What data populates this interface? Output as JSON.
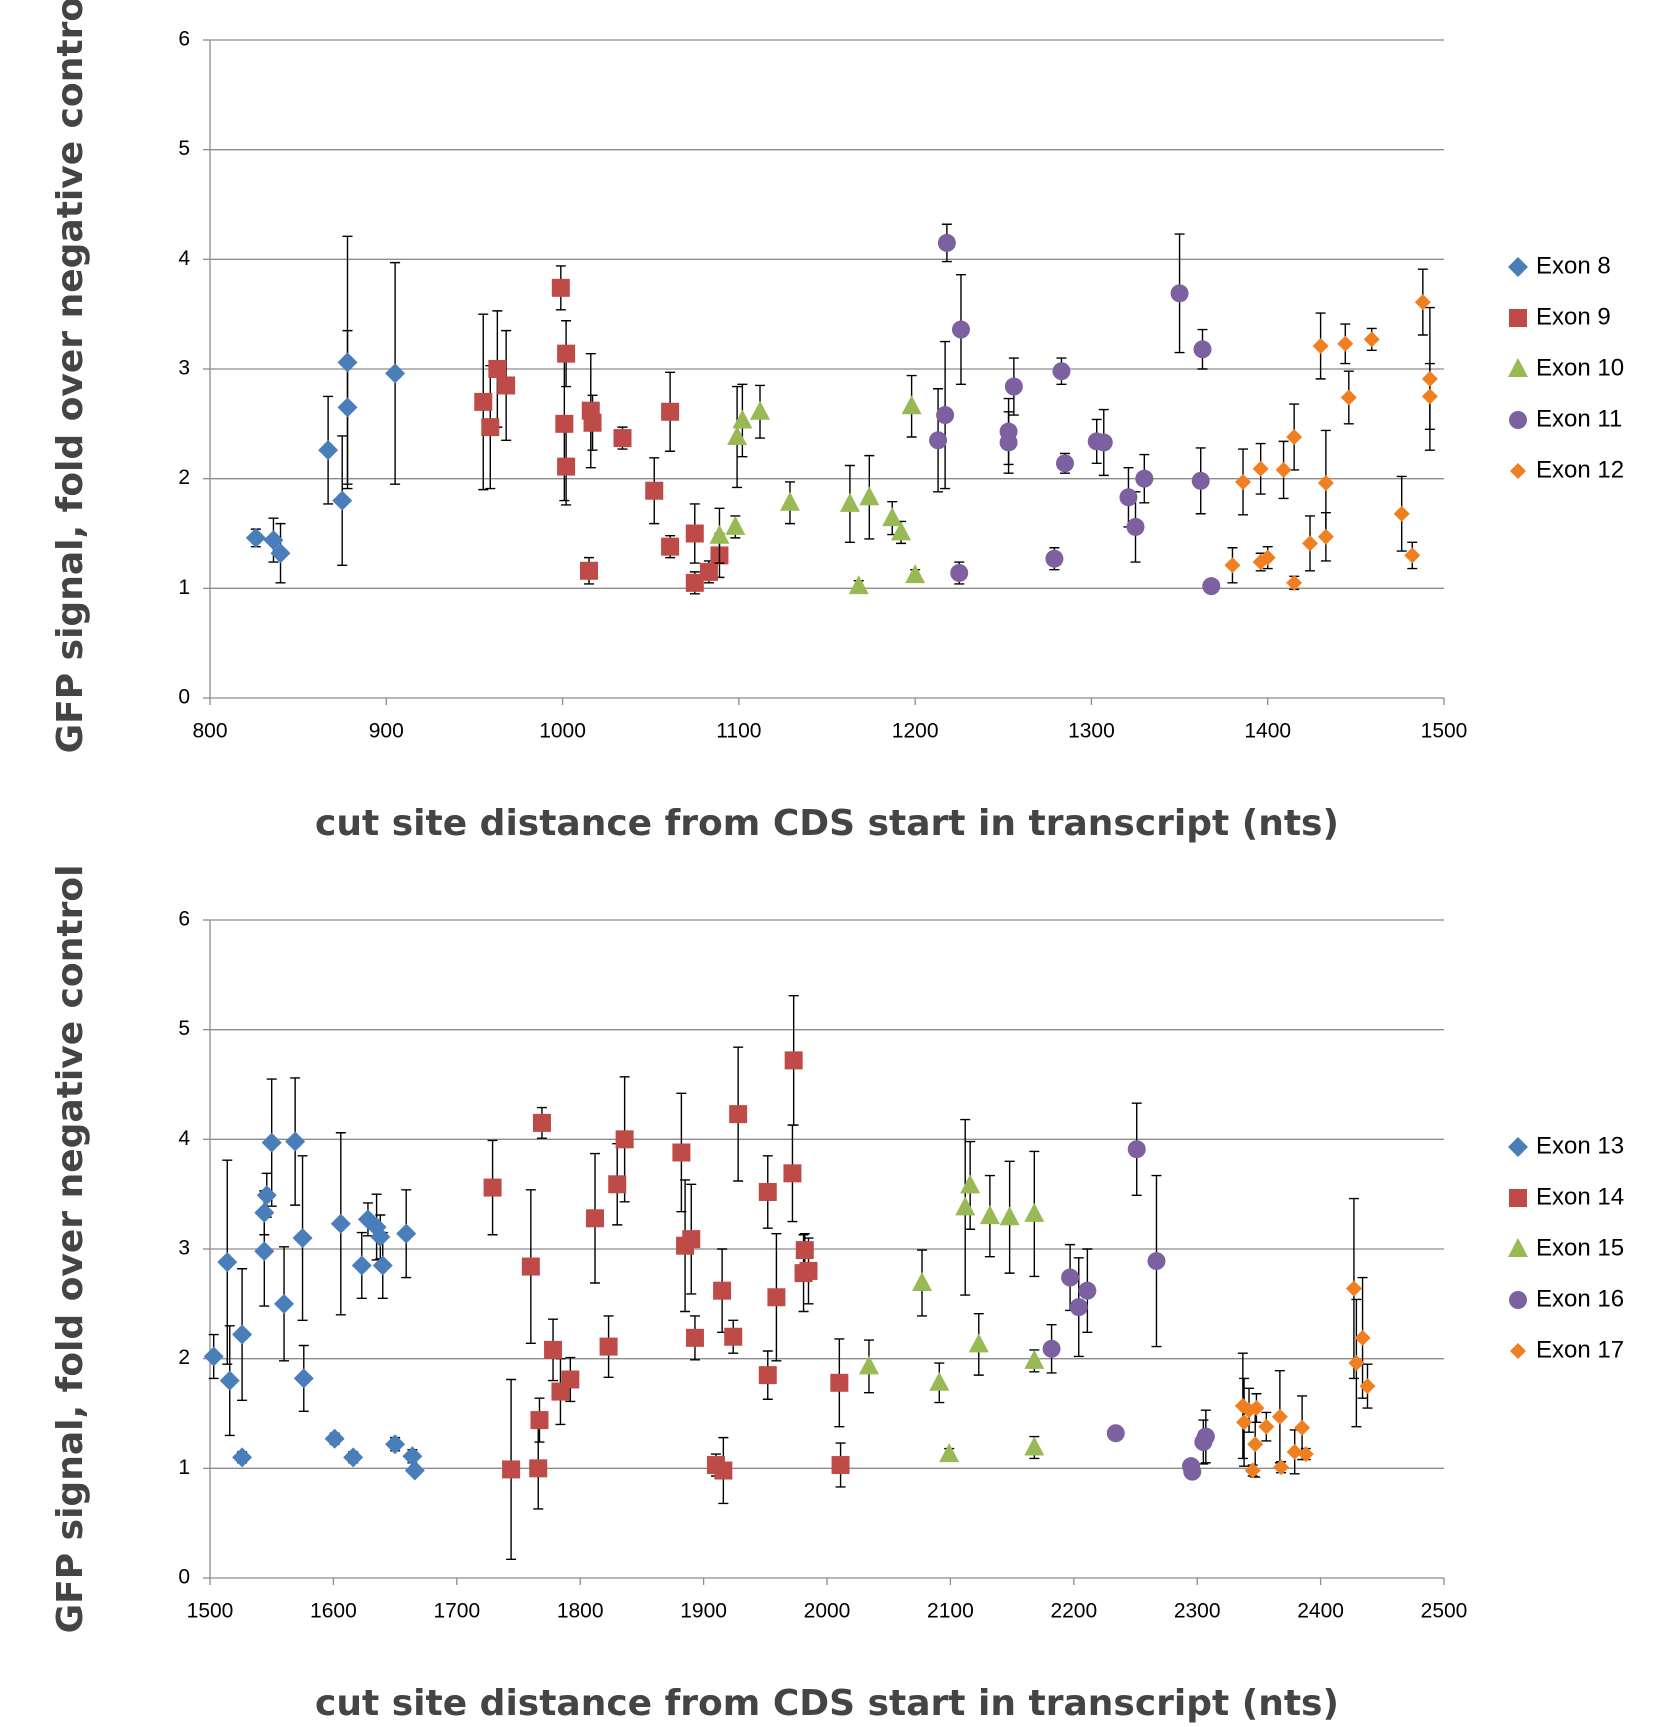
{
  "chart_data": [
    {
      "type": "scatter",
      "y_label": "GFP signal, fold over negative control",
      "x_label": "cut site distance from CDS start in transcript (nts)",
      "xlim": [
        800,
        1500
      ],
      "xticks": [
        800,
        900,
        1000,
        1100,
        1200,
        1300,
        1400,
        1500
      ],
      "ylim": [
        0,
        6
      ],
      "yticks": [
        0,
        1,
        2,
        3,
        4,
        5,
        6
      ],
      "grid": true,
      "legend": "right",
      "series": [
        {
          "name": "Exon 8",
          "color": "#4a7ebb",
          "marker": "diamond",
          "x": [
            826,
            836,
            840,
            867,
            875,
            878,
            878,
            905
          ],
          "values": [
            1.46,
            1.44,
            1.32,
            2.26,
            1.8,
            3.06,
            2.65,
            2.96
          ],
          "errors": [
            0.08,
            0.2,
            0.27,
            0.49,
            0.59,
            1.15,
            0.7,
            1.01
          ]
        },
        {
          "name": "Exon 9",
          "color": "#be4b48",
          "marker": "square",
          "x": [
            955,
            959,
            963,
            968,
            999,
            1002,
            1001,
            1002,
            1016,
            1017,
            1015,
            1034,
            1052,
            1061,
            1061,
            1075,
            1075,
            1083,
            1089
          ],
          "values": [
            2.7,
            2.47,
            3.0,
            2.85,
            3.74,
            3.14,
            2.5,
            2.11,
            2.62,
            2.51,
            1.16,
            2.37,
            1.89,
            2.61,
            1.38,
            1.5,
            1.05,
            1.15,
            1.3
          ],
          "errors": [
            0.8,
            0.56,
            0.53,
            0.5,
            0.2,
            0.3,
            0.7,
            0.35,
            0.52,
            0.25,
            0.12,
            0.1,
            0.3,
            0.36,
            0.1,
            0.27,
            0.1,
            0.1,
            0.2
          ]
        },
        {
          "name": "Exon 10",
          "color": "#98b954",
          "marker": "triangle",
          "x": [
            1089,
            1098,
            1099,
            1102,
            1112,
            1129,
            1163,
            1168,
            1174,
            1187,
            1192,
            1198,
            1200
          ],
          "values": [
            1.48,
            1.56,
            2.38,
            2.53,
            2.61,
            1.78,
            1.77,
            1.02,
            1.83,
            1.64,
            1.51,
            2.66,
            1.12
          ],
          "errors": [
            0.25,
            0.1,
            0.46,
            0.33,
            0.24,
            0.19,
            0.35,
            0.05,
            0.38,
            0.15,
            0.1,
            0.28,
            0.05
          ]
        },
        {
          "name": "Exon 11",
          "color": "#7d60a0",
          "marker": "circle",
          "x": [
            1213,
            1217,
            1218,
            1226,
            1225,
            1256,
            1253,
            1253,
            1279,
            1283,
            1285,
            1303,
            1307,
            1321,
            1325,
            1330,
            1350,
            1363,
            1362,
            1368
          ],
          "values": [
            2.35,
            2.58,
            4.15,
            3.36,
            1.14,
            2.84,
            2.43,
            2.33,
            1.27,
            2.98,
            2.14,
            2.34,
            2.33,
            1.83,
            1.56,
            2.0,
            3.69,
            3.18,
            1.98,
            1.02
          ],
          "errors": [
            0.47,
            0.67,
            0.17,
            0.5,
            0.1,
            0.26,
            0.3,
            0.28,
            0.1,
            0.12,
            0.09,
            0.2,
            0.3,
            0.27,
            0.32,
            0.22,
            0.54,
            0.18,
            0.3,
            0.04
          ]
        },
        {
          "name": "Exon 12",
          "color": "#f07f22",
          "marker": "small-diamond",
          "x": [
            1380,
            1386,
            1396,
            1396,
            1400,
            1409,
            1415,
            1415,
            1424,
            1430,
            1433,
            1433,
            1444,
            1446,
            1459,
            1476,
            1482,
            1488,
            1492,
            1492
          ],
          "values": [
            1.21,
            1.97,
            2.09,
            1.24,
            1.28,
            2.08,
            2.38,
            1.05,
            1.41,
            3.21,
            1.96,
            1.47,
            3.23,
            2.74,
            3.27,
            1.68,
            1.3,
            3.61,
            2.91,
            2.75
          ],
          "errors": [
            0.16,
            0.3,
            0.23,
            0.08,
            0.1,
            0.26,
            0.3,
            0.06,
            0.25,
            0.3,
            0.48,
            0.22,
            0.18,
            0.24,
            0.1,
            0.34,
            0.12,
            0.3,
            0.65,
            0.3
          ]
        }
      ]
    },
    {
      "type": "scatter",
      "y_label": "GFP signal, fold over negative control",
      "x_label": "cut site distance from CDS start in transcript (nts)",
      "xlim": [
        1500,
        2500
      ],
      "xticks": [
        1500,
        1600,
        1700,
        1800,
        1900,
        2000,
        2100,
        2200,
        2300,
        2400,
        2500
      ],
      "ylim": [
        0,
        6
      ],
      "yticks": [
        0,
        1,
        2,
        3,
        4,
        5,
        6
      ],
      "grid": true,
      "legend": "right",
      "series": [
        {
          "name": "Exon 13",
          "color": "#4a7ebb",
          "marker": "diamond",
          "x": [
            1503,
            1514,
            1516,
            1526,
            1526,
            1544,
            1546,
            1544,
            1550,
            1560,
            1569,
            1575,
            1576,
            1601,
            1606,
            1616,
            1623,
            1628,
            1635,
            1638,
            1640,
            1650,
            1659,
            1664,
            1666
          ],
          "values": [
            2.02,
            2.88,
            1.8,
            2.22,
            1.1,
            3.33,
            3.49,
            2.98,
            3.97,
            2.5,
            3.98,
            3.1,
            1.82,
            1.27,
            3.23,
            1.1,
            2.85,
            3.27,
            3.2,
            3.11,
            2.85,
            1.22,
            3.14,
            1.11,
            0.98
          ],
          "errors": [
            0.2,
            0.93,
            0.5,
            0.6,
            0.05,
            0.2,
            0.2,
            0.5,
            0.58,
            0.52,
            0.58,
            0.75,
            0.3,
            0.05,
            0.83,
            0.05,
            0.3,
            0.15,
            0.3,
            0.2,
            0.3,
            0.06,
            0.4,
            0.06,
            0.03
          ]
        },
        {
          "name": "Exon 14",
          "color": "#be4b48",
          "marker": "square",
          "x": [
            1729,
            1744,
            1760,
            1769,
            1767,
            1766,
            1778,
            1784,
            1792,
            1812,
            1823,
            1830,
            1836,
            1882,
            1885,
            1890,
            1893,
            1910,
            1916,
            1915,
            1924,
            1928,
            1952,
            1952,
            1959,
            1973,
            1972,
            1982,
            1981,
            1985,
            2010,
            2011
          ],
          "values": [
            3.56,
            0.99,
            2.84,
            4.15,
            1.44,
            1.0,
            2.08,
            1.7,
            1.81,
            3.28,
            2.11,
            3.59,
            4.0,
            3.88,
            3.03,
            3.09,
            2.19,
            1.03,
            0.98,
            2.62,
            2.2,
            4.23,
            3.52,
            1.85,
            2.56,
            4.72,
            3.69,
            2.99,
            2.78,
            2.8,
            1.78,
            1.03
          ],
          "errors": [
            0.43,
            0.82,
            0.7,
            0.14,
            0.2,
            0.37,
            0.28,
            0.3,
            0.2,
            0.59,
            0.28,
            0.37,
            0.57,
            0.54,
            0.6,
            0.5,
            0.2,
            0.1,
            0.3,
            0.38,
            0.15,
            0.61,
            0.33,
            0.22,
            0.58,
            0.59,
            0.44,
            0.15,
            0.35,
            0.3,
            0.4,
            0.2
          ]
        },
        {
          "name": "Exon 15",
          "color": "#98b954",
          "marker": "triangle",
          "x": [
            2034,
            2077,
            2091,
            2099,
            2112,
            2116,
            2123,
            2132,
            2148,
            2168,
            2168,
            2168
          ],
          "values": [
            1.93,
            2.69,
            1.78,
            1.13,
            3.38,
            3.58,
            2.13,
            3.3,
            3.29,
            3.32,
            1.98,
            1.19
          ],
          "errors": [
            0.24,
            0.3,
            0.18,
            0.05,
            0.8,
            0.4,
            0.28,
            0.37,
            0.51,
            0.57,
            0.1,
            0.1
          ]
        },
        {
          "name": "Exon 16",
          "color": "#7d60a0",
          "marker": "circle",
          "x": [
            2182,
            2197,
            2204,
            2211,
            2234,
            2251,
            2267,
            2295,
            2296,
            2305,
            2307
          ],
          "values": [
            2.09,
            2.74,
            2.47,
            2.62,
            1.32,
            3.91,
            2.89,
            1.02,
            0.97,
            1.24,
            1.29
          ],
          "errors": [
            0.22,
            0.3,
            0.45,
            0.38,
            0.05,
            0.42,
            0.78,
            0.05,
            0.05,
            0.2,
            0.24
          ]
        },
        {
          "name": "Exon 17",
          "color": "#f07f22",
          "marker": "small-diamond",
          "x": [
            2337,
            2338,
            2342,
            2345,
            2347,
            2348,
            2356,
            2368,
            2367,
            2379,
            2385,
            2388,
            2427,
            2429,
            2434,
            2438
          ],
          "values": [
            1.57,
            1.42,
            1.53,
            0.98,
            1.22,
            1.55,
            1.38,
            1.01,
            1.47,
            1.15,
            1.37,
            1.13,
            2.64,
            1.96,
            2.19,
            1.75
          ],
          "errors": [
            0.48,
            0.4,
            0.2,
            0.05,
            0.3,
            0.13,
            0.13,
            0.05,
            0.42,
            0.2,
            0.29,
            0.05,
            0.82,
            0.58,
            0.55,
            0.2
          ]
        }
      ]
    }
  ]
}
